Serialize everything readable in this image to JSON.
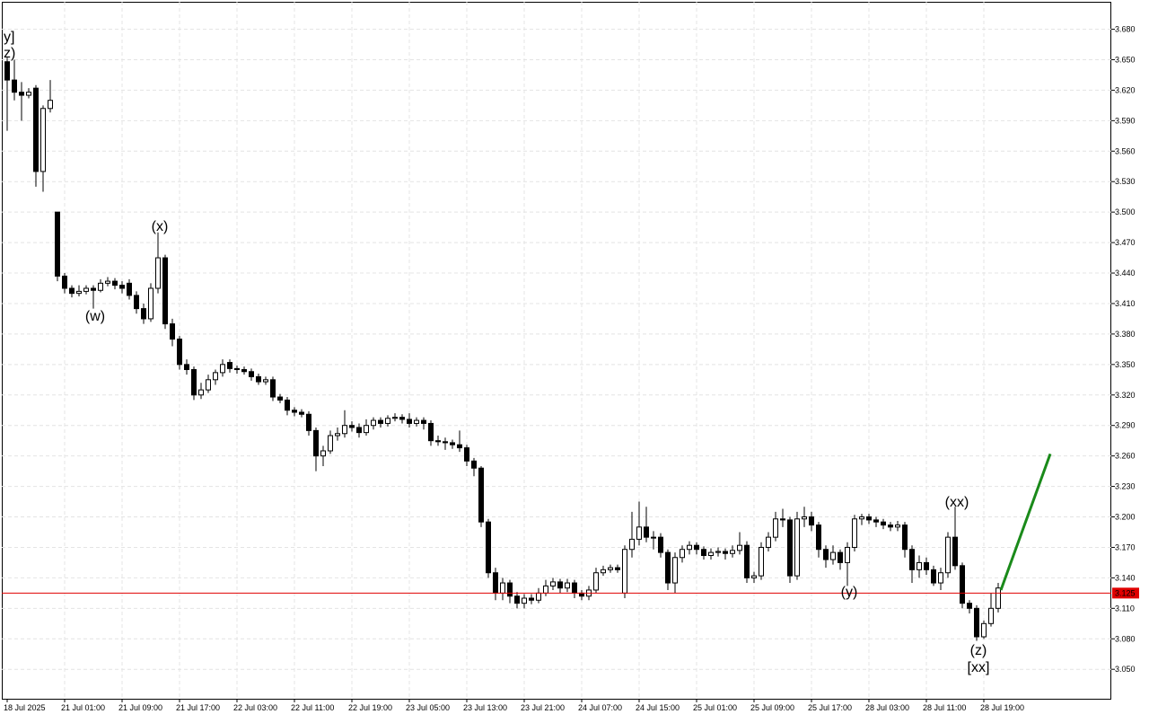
{
  "chart_data": {
    "type": "candlestick",
    "x": [
      "18 Jul 2025",
      null,
      null,
      null,
      null,
      null,
      null,
      null,
      "21 Jul 01:00",
      null,
      null,
      null,
      null,
      null,
      null,
      null,
      "21 Jul 09:00",
      null,
      null,
      null,
      null,
      null,
      null,
      null,
      "21 Jul 17:00",
      null,
      null,
      null,
      null,
      null,
      null,
      null,
      "22 Jul 03:00",
      null,
      null,
      null,
      null,
      null,
      null,
      null,
      "22 Jul 11:00",
      null,
      null,
      null,
      null,
      null,
      null,
      null,
      "22 Jul 19:00",
      null,
      null,
      null,
      null,
      null,
      null,
      null,
      "23 Jul 05:00",
      null,
      null,
      null,
      null,
      null,
      null,
      null,
      "23 Jul 13:00",
      null,
      null,
      null,
      null,
      null,
      null,
      null,
      "23 Jul 21:00",
      null,
      null,
      null,
      null,
      null,
      null,
      null,
      "24 Jul 07:00",
      null,
      null,
      null,
      null,
      null,
      null,
      null,
      "24 Jul 15:00",
      null,
      null,
      null,
      null,
      null,
      null,
      null,
      "25 Jul 01:00",
      null,
      null,
      null,
      null,
      null,
      null,
      null,
      "25 Jul 09:00",
      null,
      null,
      null,
      null,
      null,
      null,
      null,
      "25 Jul 17:00",
      null,
      null,
      null,
      null,
      null,
      null,
      null,
      "28 Jul 03:00",
      null,
      null,
      null,
      null,
      null,
      null,
      null,
      "28 Jul 11:00",
      null,
      null,
      null,
      null,
      null,
      null,
      null,
      "28 Jul 19:00",
      null,
      null
    ],
    "ohlc": [
      [
        3.648,
        3.652,
        3.58,
        3.63
      ],
      [
        3.63,
        3.65,
        3.61,
        3.618
      ],
      [
        3.618,
        3.628,
        3.59,
        3.615
      ],
      [
        3.615,
        3.622,
        3.612,
        3.618
      ],
      [
        3.622,
        3.625,
        3.525,
        3.54
      ],
      [
        3.54,
        3.605,
        3.52,
        3.602
      ],
      [
        3.602,
        3.63,
        3.598,
        3.61
      ],
      [
        3.5,
        3.5,
        3.432,
        3.437
      ],
      [
        3.437,
        3.44,
        3.42,
        3.425
      ],
      [
        3.425,
        3.428,
        3.416,
        3.42
      ],
      [
        3.42,
        3.428,
        3.417,
        3.422
      ],
      [
        3.422,
        3.428,
        3.419,
        3.425
      ],
      [
        3.425,
        3.428,
        3.405,
        3.423
      ],
      [
        3.423,
        3.434,
        3.421,
        3.43
      ],
      [
        3.43,
        3.436,
        3.427,
        3.432
      ],
      [
        3.432,
        3.435,
        3.424,
        3.428
      ],
      [
        3.428,
        3.432,
        3.42,
        3.425
      ],
      [
        3.43,
        3.434,
        3.414,
        3.418
      ],
      [
        3.418,
        3.422,
        3.4,
        3.405
      ],
      [
        3.405,
        3.41,
        3.39,
        3.395
      ],
      [
        3.395,
        3.43,
        3.392,
        3.425
      ],
      [
        3.425,
        3.48,
        3.42,
        3.455
      ],
      [
        3.455,
        3.458,
        3.385,
        3.39
      ],
      [
        3.39,
        3.395,
        3.368,
        3.375
      ],
      [
        3.375,
        3.378,
        3.345,
        3.35
      ],
      [
        3.35,
        3.355,
        3.34,
        3.345
      ],
      [
        3.345,
        3.348,
        3.315,
        3.32
      ],
      [
        3.32,
        3.332,
        3.316,
        3.325
      ],
      [
        3.325,
        3.34,
        3.322,
        3.335
      ],
      [
        3.335,
        3.345,
        3.33,
        3.342
      ],
      [
        3.342,
        3.355,
        3.338,
        3.35
      ],
      [
        3.352,
        3.355,
        3.342,
        3.346
      ],
      [
        3.346,
        3.349,
        3.341,
        3.345
      ],
      [
        3.345,
        3.348,
        3.34,
        3.343
      ],
      [
        3.343,
        3.346,
        3.334,
        3.338
      ],
      [
        3.338,
        3.341,
        3.33,
        3.333
      ],
      [
        3.333,
        3.338,
        3.33,
        3.335
      ],
      [
        3.335,
        3.338,
        3.314,
        3.318
      ],
      [
        3.318,
        3.321,
        3.312,
        3.315
      ],
      [
        3.315,
        3.318,
        3.3,
        3.305
      ],
      [
        3.305,
        3.308,
        3.299,
        3.303
      ],
      [
        3.303,
        3.306,
        3.298,
        3.301
      ],
      [
        3.301,
        3.304,
        3.28,
        3.285
      ],
      [
        3.285,
        3.288,
        3.245,
        3.26
      ],
      [
        3.26,
        3.27,
        3.25,
        3.265
      ],
      [
        3.265,
        3.285,
        3.262,
        3.28
      ],
      [
        3.28,
        3.288,
        3.275,
        3.282
      ],
      [
        3.282,
        3.305,
        3.278,
        3.29
      ],
      [
        3.29,
        3.294,
        3.284,
        3.288
      ],
      [
        3.288,
        3.292,
        3.278,
        3.283
      ],
      [
        3.283,
        3.296,
        3.28,
        3.29
      ],
      [
        3.29,
        3.298,
        3.286,
        3.295
      ],
      [
        3.295,
        3.298,
        3.288,
        3.292
      ],
      [
        3.292,
        3.3,
        3.289,
        3.297
      ],
      [
        3.297,
        3.302,
        3.294,
        3.298
      ],
      [
        3.298,
        3.301,
        3.292,
        3.296
      ],
      [
        3.296,
        3.302,
        3.288,
        3.292
      ],
      [
        3.292,
        3.298,
        3.289,
        3.295
      ],
      [
        3.295,
        3.298,
        3.286,
        3.292
      ],
      [
        3.292,
        3.295,
        3.27,
        3.275
      ],
      [
        3.275,
        3.28,
        3.27,
        3.274
      ],
      [
        3.274,
        3.278,
        3.266,
        3.273
      ],
      [
        3.273,
        3.276,
        3.267,
        3.271
      ],
      [
        3.271,
        3.285,
        3.264,
        3.268
      ],
      [
        3.268,
        3.271,
        3.25,
        3.255
      ],
      [
        3.255,
        3.258,
        3.24,
        3.248
      ],
      [
        3.248,
        3.25,
        3.19,
        3.195
      ],
      [
        3.195,
        3.198,
        3.14,
        3.145
      ],
      [
        3.145,
        3.15,
        3.118,
        3.125
      ],
      [
        3.125,
        3.14,
        3.118,
        3.135
      ],
      [
        3.135,
        3.138,
        3.115,
        3.122
      ],
      [
        3.122,
        3.126,
        3.11,
        3.115
      ],
      [
        3.115,
        3.124,
        3.11,
        3.12
      ],
      [
        3.12,
        3.124,
        3.114,
        3.118
      ],
      [
        3.118,
        3.13,
        3.115,
        3.125
      ],
      [
        3.125,
        3.138,
        3.122,
        3.132
      ],
      [
        3.132,
        3.14,
        3.128,
        3.136
      ],
      [
        3.136,
        3.139,
        3.125,
        3.13
      ],
      [
        3.13,
        3.139,
        3.126,
        3.135
      ],
      [
        3.135,
        3.138,
        3.12,
        3.125
      ],
      [
        3.125,
        3.128,
        3.118,
        3.122
      ],
      [
        3.122,
        3.132,
        3.118,
        3.128
      ],
      [
        3.128,
        3.15,
        3.125,
        3.145
      ],
      [
        3.145,
        3.152,
        3.142,
        3.148
      ],
      [
        3.148,
        3.153,
        3.145,
        3.15
      ],
      [
        3.15,
        3.153,
        3.145,
        3.148
      ],
      [
        3.125,
        3.172,
        3.12,
        3.168
      ],
      [
        3.168,
        3.205,
        3.16,
        3.178
      ],
      [
        3.178,
        3.215,
        3.172,
        3.19
      ],
      [
        3.19,
        3.21,
        3.175,
        3.18
      ],
      [
        3.18,
        3.186,
        3.168,
        3.18
      ],
      [
        3.18,
        3.184,
        3.16,
        3.165
      ],
      [
        3.165,
        3.168,
        3.128,
        3.135
      ],
      [
        3.135,
        3.165,
        3.125,
        3.16
      ],
      [
        3.16,
        3.172,
        3.155,
        3.168
      ],
      [
        3.168,
        3.176,
        3.163,
        3.172
      ],
      [
        3.172,
        3.175,
        3.163,
        3.168
      ],
      [
        3.168,
        3.171,
        3.158,
        3.162
      ],
      [
        3.162,
        3.169,
        3.158,
        3.165
      ],
      [
        3.165,
        3.17,
        3.161,
        3.166
      ],
      [
        3.166,
        3.169,
        3.158,
        3.164
      ],
      [
        3.164,
        3.172,
        3.16,
        3.167
      ],
      [
        3.167,
        3.185,
        3.163,
        3.172
      ],
      [
        3.172,
        3.176,
        3.135,
        3.14
      ],
      [
        3.14,
        3.146,
        3.135,
        3.142
      ],
      [
        3.142,
        3.175,
        3.138,
        3.17
      ],
      [
        3.17,
        3.185,
        3.166,
        3.18
      ],
      [
        3.18,
        3.205,
        3.176,
        3.198
      ],
      [
        3.198,
        3.208,
        3.19,
        3.197
      ],
      [
        3.197,
        3.2,
        3.135,
        3.142
      ],
      [
        3.142,
        3.205,
        3.138,
        3.198
      ],
      [
        3.198,
        3.21,
        3.19,
        3.2
      ],
      [
        3.2,
        3.205,
        3.186,
        3.192
      ],
      [
        3.192,
        3.195,
        3.16,
        3.168
      ],
      [
        3.168,
        3.172,
        3.15,
        3.158
      ],
      [
        3.158,
        3.172,
        3.153,
        3.165
      ],
      [
        3.165,
        3.168,
        3.148,
        3.155
      ],
      [
        3.155,
        3.175,
        3.132,
        3.17
      ],
      [
        3.17,
        3.202,
        3.166,
        3.198
      ],
      [
        3.198,
        3.203,
        3.192,
        3.2
      ],
      [
        3.2,
        3.203,
        3.193,
        3.197
      ],
      [
        3.197,
        3.2,
        3.19,
        3.195
      ],
      [
        3.195,
        3.198,
        3.188,
        3.192
      ],
      [
        3.192,
        3.195,
        3.186,
        3.19
      ],
      [
        3.19,
        3.196,
        3.186,
        3.192
      ],
      [
        3.192,
        3.195,
        3.16,
        3.168
      ],
      [
        3.168,
        3.172,
        3.135,
        3.148
      ],
      [
        3.148,
        3.162,
        3.14,
        3.155
      ],
      [
        3.155,
        3.16,
        3.143,
        3.148
      ],
      [
        3.148,
        3.152,
        3.132,
        3.135
      ],
      [
        3.135,
        3.15,
        3.128,
        3.145
      ],
      [
        3.145,
        3.185,
        3.14,
        3.18
      ],
      [
        3.18,
        3.21,
        3.148,
        3.152
      ],
      [
        3.152,
        3.155,
        3.11,
        3.115
      ],
      [
        3.115,
        3.118,
        3.105,
        3.11
      ],
      [
        3.11,
        3.113,
        3.078,
        3.082
      ],
      [
        3.082,
        3.098,
        3.08,
        3.095
      ],
      [
        3.095,
        3.125,
        3.092,
        3.11
      ],
      [
        3.11,
        3.135,
        3.106,
        3.13
      ]
    ],
    "ylim": [
      3.021,
      3.707
    ],
    "yticks": [
      {
        "value": 3.68,
        "label": "3.680"
      },
      {
        "value": 3.65,
        "label": "3.650"
      },
      {
        "value": 3.62,
        "label": "3.620"
      },
      {
        "value": 3.59,
        "label": "3.590"
      },
      {
        "value": 3.56,
        "label": "3.560"
      },
      {
        "value": 3.53,
        "label": "3.530"
      },
      {
        "value": 3.5,
        "label": "3.500"
      },
      {
        "value": 3.47,
        "label": "3.470"
      },
      {
        "value": 3.44,
        "label": "3.440"
      },
      {
        "value": 3.41,
        "label": "3.410"
      },
      {
        "value": 3.38,
        "label": "3.380"
      },
      {
        "value": 3.35,
        "label": "3.350"
      },
      {
        "value": 3.32,
        "label": "3.320"
      },
      {
        "value": 3.29,
        "label": "3.290"
      },
      {
        "value": 3.26,
        "label": "3.260"
      },
      {
        "value": 3.23,
        "label": "3.230"
      },
      {
        "value": 3.2,
        "label": "3.200"
      },
      {
        "value": 3.17,
        "label": "3.170"
      },
      {
        "value": 3.14,
        "label": "3.140"
      },
      {
        "value": 3.11,
        "label": "3.110"
      },
      {
        "value": 3.08,
        "label": "3.080"
      },
      {
        "value": 3.05,
        "label": "3.050"
      }
    ],
    "grid": true,
    "current_price": 3.125,
    "current_price_color": "#e00000",
    "projection": [
      3.128,
      3.262
    ],
    "projection_color": "#1a8a1a",
    "annotations": [
      {
        "text": "y]",
        "color": "#3cb83c"
      },
      {
        "text": "z)",
        "color": "#2020d0"
      },
      {
        "text": "(x)",
        "color": "#2020d0"
      },
      {
        "text": "(w)",
        "color": "#2020d0"
      },
      {
        "text": "(xx)",
        "color": "#2020d0"
      },
      {
        "text": "(y)",
        "color": "#2020d0"
      },
      {
        "text": "(z)",
        "color": "#2020d0"
      },
      {
        "text": "[xx]",
        "color": "#3cb83c"
      }
    ]
  }
}
